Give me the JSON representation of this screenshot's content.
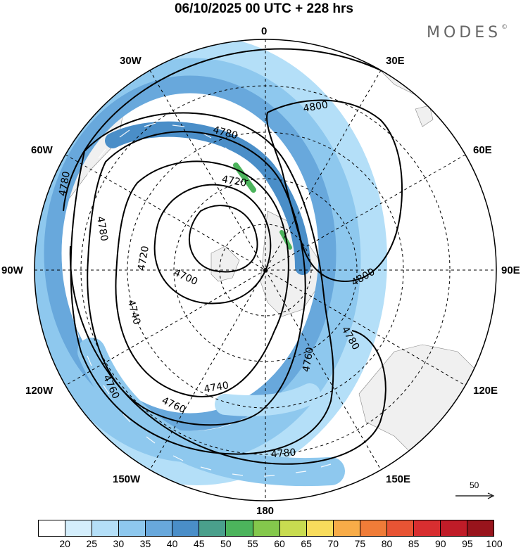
{
  "title": "06/10/2025  00 UTC  + 228 hrs",
  "brand": "MODES",
  "brand_mark": "©",
  "longitude_labels": {
    "lon_0": "0",
    "lon_30e": "30E",
    "lon_60e": "60E",
    "lon_90e": "90E",
    "lon_120e": "120E",
    "lon_150e": "150E",
    "lon_180": "180",
    "lon_150w": "150W",
    "lon_120w": "120W",
    "lon_90w": "90W",
    "lon_60w": "60W",
    "lon_30w": "30W"
  },
  "contour_labels": {
    "c4700": "4700",
    "c4720_a": "4720",
    "c4720_b": "4720",
    "c4740_a": "4740",
    "c4740_b": "4740",
    "c4760_a": "4760",
    "c4760_b": "4760",
    "c4760_c": "4760",
    "c4780_a": "4780",
    "c4780_b": "4780",
    "c4780_c": "4780",
    "c4780_d": "4780",
    "c4780_e": "4780",
    "c4800_a": "4800",
    "c4800_b": "4800"
  },
  "reference_vector": "50",
  "colorbar": {
    "labels": [
      "20",
      "25",
      "30",
      "35",
      "40",
      "45",
      "50",
      "55",
      "60",
      "65",
      "70",
      "75",
      "80",
      "85",
      "90",
      "95",
      "100"
    ],
    "colors": [
      "#ffffff",
      "#d4eefc",
      "#b4dff8",
      "#8ec8ee",
      "#68a8dc",
      "#4a8ec8",
      "#4aa08c",
      "#4cb45c",
      "#84c84c",
      "#c8dc50",
      "#f8dc5c",
      "#f8ac48",
      "#f07c38",
      "#e85434",
      "#d82e30",
      "#c01c28",
      "#98141c"
    ]
  },
  "map_colors": {
    "land": "#f0f0f0",
    "jet_light": "#b4dff8",
    "jet_mid": "#8ec8ee",
    "jet_strong": "#68a8dc",
    "jet_core": "#4a8ec8",
    "jet_peak": "#4cb45c"
  }
}
